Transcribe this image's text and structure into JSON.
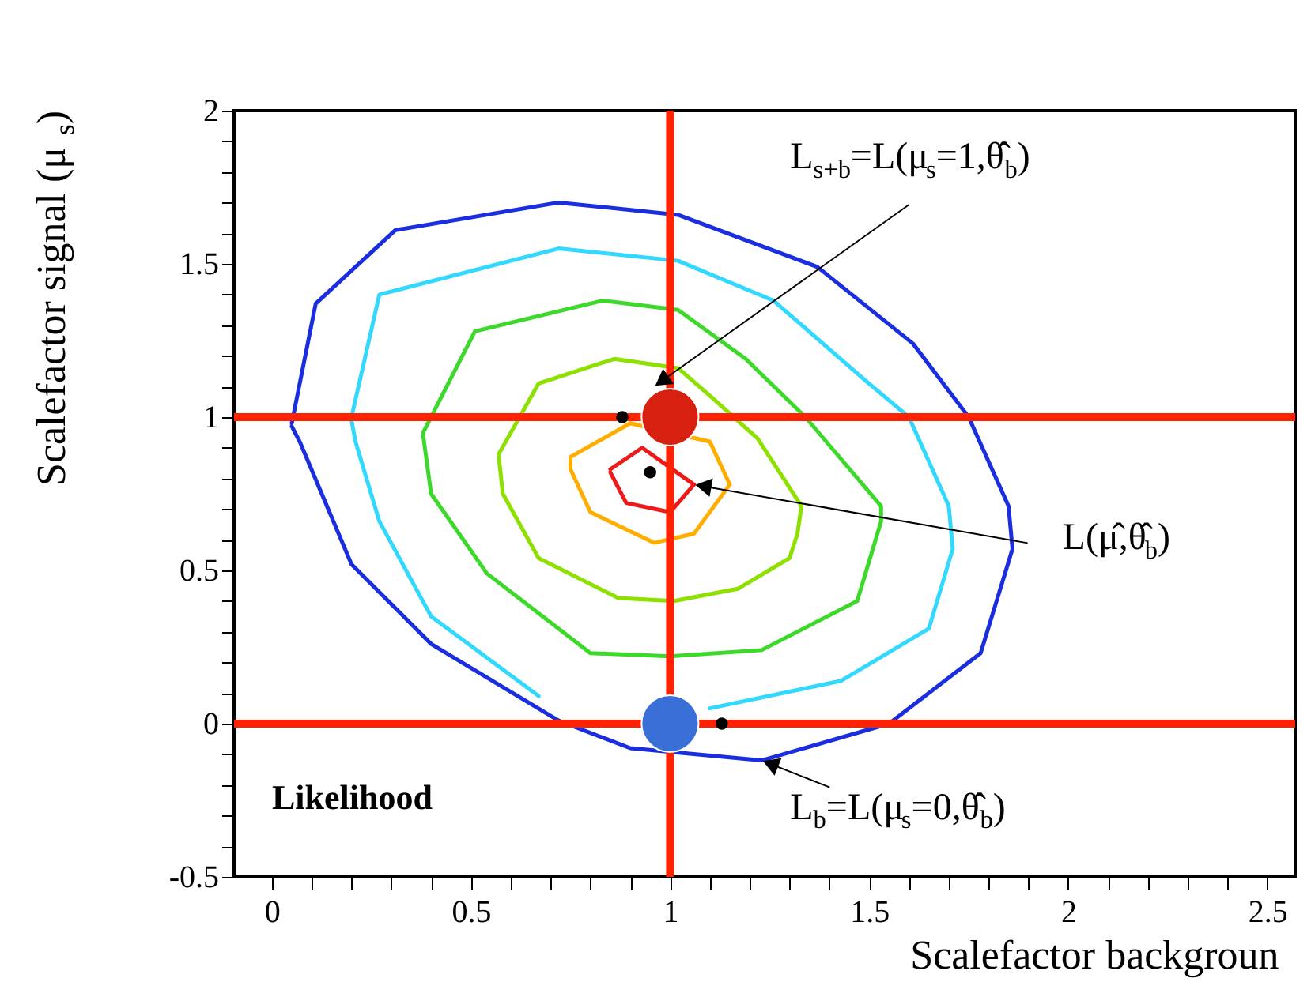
{
  "chart_data": {
    "type": "line",
    "xlabel": "Scalefactor backgroun",
    "ylabel": "Scalefactor signal (μ$_{s}$)",
    "xlim": [
      -0.095,
      2.57
    ],
    "ylim": [
      -0.5,
      2
    ],
    "xticks": [
      0,
      {
        "value": 0.1,
        "label": null
      },
      {
        "value": 0.2,
        "label": null
      },
      {
        "value": 0.3,
        "label": null
      },
      {
        "value": 0.4,
        "label": null
      },
      0.5,
      {
        "value": 0.6,
        "label": null
      },
      {
        "value": 0.7,
        "label": null
      },
      {
        "value": 0.8,
        "label": null
      },
      {
        "value": 0.9,
        "label": null
      },
      1,
      {
        "value": 1.1,
        "label": null
      },
      {
        "value": 1.2,
        "label": null
      },
      {
        "value": 1.3,
        "label": null
      },
      {
        "value": 1.4,
        "label": null
      },
      1.5,
      {
        "value": 1.6,
        "label": null
      },
      {
        "value": 1.7,
        "label": null
      },
      {
        "value": 1.8,
        "label": null
      },
      {
        "value": 1.9,
        "label": null
      },
      2,
      {
        "value": 2.1,
        "label": null
      },
      {
        "value": 2.2,
        "label": null
      },
      {
        "value": 2.3,
        "label": null
      },
      {
        "value": 2.4,
        "label": null
      },
      2.5
    ],
    "yticks": [
      -0.5,
      {
        "value": -0.4,
        "label": null
      },
      {
        "value": -0.3,
        "label": null
      },
      {
        "value": -0.2,
        "label": null
      },
      {
        "value": -0.1,
        "label": null
      },
      0,
      {
        "value": 0.1,
        "label": null
      },
      {
        "value": 0.2,
        "label": null
      },
      {
        "value": 0.3,
        "label": null
      },
      {
        "value": 0.4,
        "label": null
      },
      0.5,
      {
        "value": 0.6,
        "label": null
      },
      {
        "value": 0.7,
        "label": null
      },
      {
        "value": 0.8,
        "label": null
      },
      {
        "value": 0.9,
        "label": null
      },
      1,
      {
        "value": 1.1,
        "label": null
      },
      {
        "value": 1.2,
        "label": null
      },
      {
        "value": 1.3,
        "label": null
      },
      {
        "value": 1.4,
        "label": null
      },
      1.5,
      {
        "value": 1.6,
        "label": null
      },
      {
        "value": 1.7,
        "label": null
      },
      {
        "value": 1.8,
        "label": null
      },
      {
        "value": 1.9,
        "label": null
      },
      2
    ],
    "series": [
      {
        "color": "#1a2ee0",
        "x": [
          0.05,
          0.11,
          0.31,
          0.72,
          1.02,
          1.37,
          1.61,
          1.75,
          1.85,
          1.86,
          1.78,
          1.55,
          1.23,
          0.9,
          0.72,
          0.4,
          0.2,
          0.07,
          0.05
        ],
        "values": [
          0.98,
          1.37,
          1.61,
          1.7,
          1.66,
          1.49,
          1.24,
          1.0,
          0.71,
          0.57,
          0.23,
          0.0,
          -0.12,
          -0.08,
          0.01,
          0.26,
          0.52,
          0.92,
          0.97
        ]
      },
      {
        "color": "#33d8ff",
        "x": [
          0.2,
          0.27,
          0.72,
          1.02,
          1.26,
          1.49,
          1.6,
          1.7,
          1.71,
          1.65,
          1.43,
          1.1,
          1.0,
          0.67,
          0.4,
          0.27,
          0.21,
          0.2
        ],
        "values": [
          1.0,
          1.4,
          1.55,
          1.51,
          1.38,
          1.12,
          1.0,
          0.71,
          0.57,
          0.31,
          0.14,
          0.05,
          null,
          0.09,
          0.35,
          0.66,
          0.92,
          0.99
        ]
      },
      {
        "color": "#3cd82a",
        "x": [
          0.38,
          0.51,
          0.83,
          1.02,
          1.19,
          1.34,
          1.53,
          1.53,
          1.47,
          1.23,
          1.0,
          0.8,
          0.54,
          0.4,
          0.38
        ],
        "values": [
          0.95,
          1.28,
          1.38,
          1.35,
          1.19,
          1.0,
          0.71,
          0.66,
          0.4,
          0.24,
          0.22,
          0.23,
          0.49,
          0.75,
          0.94
        ]
      },
      {
        "color": "#8ee000",
        "x": [
          0.57,
          0.67,
          0.86,
          1.02,
          1.1,
          1.22,
          1.33,
          1.32,
          1.3,
          1.17,
          1.01,
          0.87,
          0.67,
          0.58,
          0.57
        ],
        "values": [
          0.88,
          1.11,
          1.19,
          1.16,
          1.07,
          0.93,
          0.71,
          0.62,
          0.54,
          0.44,
          0.4,
          0.41,
          0.54,
          0.75,
          0.87
        ]
      },
      {
        "color": "#ffae00",
        "x": [
          0.75,
          0.9,
          1.1,
          1.15,
          1.06,
          0.96,
          0.8,
          0.75,
          0.75
        ],
        "values": [
          0.87,
          0.98,
          0.92,
          0.78,
          0.62,
          0.59,
          0.69,
          0.83,
          0.86
        ]
      },
      {
        "color": "#ee1a1a",
        "x": [
          0.85,
          0.93,
          1.06,
          1.0,
          0.89,
          0.85
        ],
        "values": [
          0.83,
          0.9,
          0.78,
          0.69,
          0.72,
          0.82
        ]
      },
      {
        "type": "scatter",
        "marker": "circle",
        "color": "#000000",
        "x": [
          0.95,
          0.88,
          1.13
        ],
        "values": [
          0.82,
          1.0,
          0.0
        ]
      },
      {
        "type": "bubble",
        "colors": [
          "#d82010",
          "#3a6fd8"
        ],
        "x": [
          1,
          1
        ],
        "values": [
          1,
          0
        ],
        "sizes": [
          1,
          1
        ]
      }
    ],
    "ref_lines": [
      {
        "axis": "x",
        "value": 1,
        "color": "#ff2200"
      },
      {
        "axis": "y",
        "value": 1,
        "color": "#ff2200"
      },
      {
        "axis": "y",
        "value": 0,
        "color": "#ff2200"
      }
    ],
    "annotations": [
      {
        "text": "L$_{s+b}$=L(μ$_{s}$=1,θ̂̂$_{b}$)",
        "x": 0.96,
        "y": 1.1
      },
      {
        "text": "L(μ̂,θ̂$_{b}$)",
        "x": 1.06,
        "y": 0.78
      },
      {
        "text": "L$_{b}$=L(μ$_{s}$=0,θ̂̂$_{b}$)",
        "x": 1.23,
        "y": -0.12
      },
      "Likelihood"
    ]
  }
}
